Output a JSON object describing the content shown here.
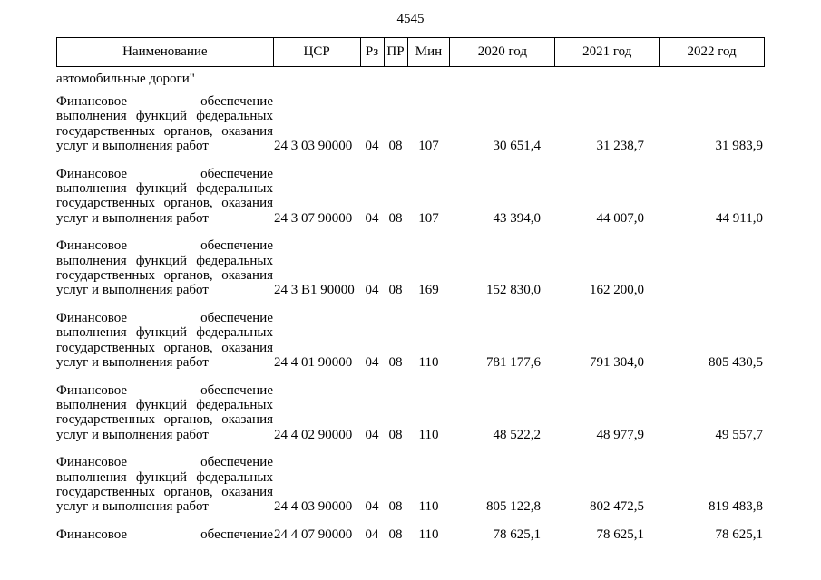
{
  "page": {
    "number": "4545",
    "text_color": "#000000",
    "background_color": "#ffffff"
  },
  "table": {
    "headers": {
      "name": "Наименование",
      "csr": "ЦСР",
      "rz": "Рз",
      "pr": "ПР",
      "min": "Мин",
      "y2020": "2020 год",
      "y2021": "2021 год",
      "y2022": "2022 год"
    },
    "continuation_line": "автомобильные дороги\"",
    "rows": [
      {
        "name_lines": [
          "Финансовое обеспечение",
          "выполнения функций федеральных",
          "государственных органов, оказания",
          "услуг и выполнения работ"
        ],
        "justify_all": false,
        "csr": "24 3 03 90000",
        "rz": "04",
        "pr": "08",
        "min": "107",
        "y2020": "30 651,4",
        "y2021": "31 238,7",
        "y2022": "31 983,9"
      },
      {
        "name_lines": [
          "Финансовое обеспечение",
          "выполнения функций федеральных",
          "государственных органов, оказания",
          "услуг и выполнения работ"
        ],
        "justify_all": false,
        "csr": "24 3 07 90000",
        "rz": "04",
        "pr": "08",
        "min": "107",
        "y2020": "43 394,0",
        "y2021": "44 007,0",
        "y2022": "44 911,0"
      },
      {
        "name_lines": [
          "Финансовое обеспечение",
          "выполнения функций федеральных",
          "государственных органов, оказания",
          "услуг и выполнения работ"
        ],
        "justify_all": false,
        "csr": "24 3 В1 90000",
        "rz": "04",
        "pr": "08",
        "min": "169",
        "y2020": "152 830,0",
        "y2021": "162 200,0",
        "y2022": ""
      },
      {
        "name_lines": [
          "Финансовое обеспечение",
          "выполнения функций федеральных",
          "государственных органов, оказания",
          "услуг и выполнения работ"
        ],
        "justify_all": false,
        "csr": "24 4 01 90000",
        "rz": "04",
        "pr": "08",
        "min": "110",
        "y2020": "781 177,6",
        "y2021": "791 304,0",
        "y2022": "805 430,5"
      },
      {
        "name_lines": [
          "Финансовое обеспечение",
          "выполнения функций федеральных",
          "государственных органов, оказания",
          "услуг и выполнения работ"
        ],
        "justify_all": false,
        "csr": "24 4 02 90000",
        "rz": "04",
        "pr": "08",
        "min": "110",
        "y2020": "48 522,2",
        "y2021": "48 977,9",
        "y2022": "49 557,7"
      },
      {
        "name_lines": [
          "Финансовое обеспечение",
          "выполнения функций федеральных",
          "государственных органов, оказания",
          "услуг и выполнения работ"
        ],
        "justify_all": false,
        "csr": "24 4 03 90000",
        "rz": "04",
        "pr": "08",
        "min": "110",
        "y2020": "805 122,8",
        "y2021": "802 472,5",
        "y2022": "819 483,8"
      },
      {
        "name_lines": [
          "Финансовое обеспечение"
        ],
        "justify_all": true,
        "csr": "24 4 07 90000",
        "rz": "04",
        "pr": "08",
        "min": "110",
        "y2020": "78 625,1",
        "y2021": "78 625,1",
        "y2022": "78 625,1"
      }
    ]
  }
}
